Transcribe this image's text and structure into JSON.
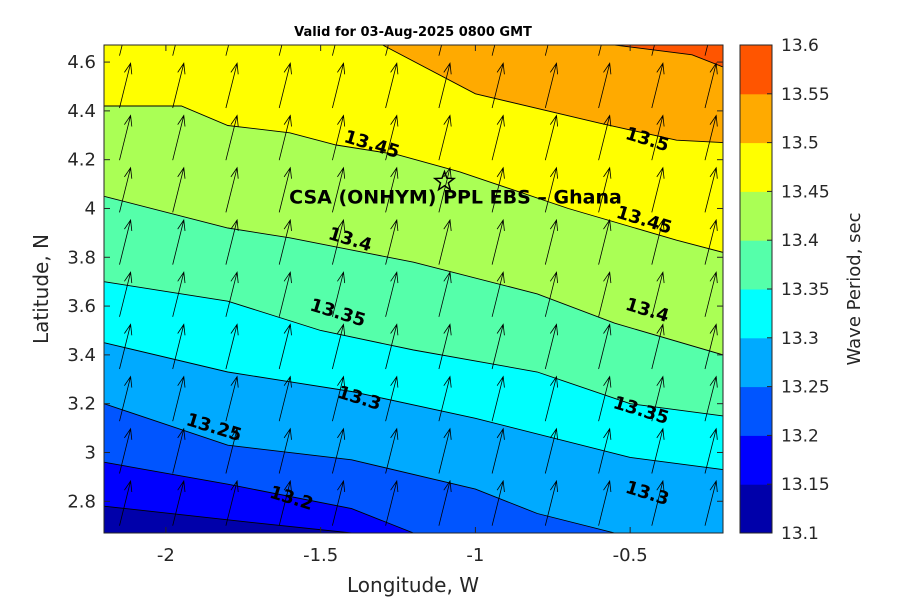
{
  "chart_data": {
    "type": "contour",
    "title": "Valid for 03-Aug-2025 0800 GMT",
    "xlabel": "Longitude, W",
    "ylabel": "Latitude, N",
    "xlim": [
      -2.2,
      -0.2
    ],
    "ylim": [
      2.67,
      4.67
    ],
    "xticks": [
      -2,
      -1.5,
      -1,
      -0.5
    ],
    "xtick_labels": [
      "-2",
      "-1.5",
      "-1",
      "-0.5"
    ],
    "yticks": [
      2.8,
      3.0,
      3.2,
      3.4,
      3.6,
      3.8,
      4.0,
      4.2,
      4.4,
      4.6
    ],
    "ytick_labels": [
      "2.8",
      "3",
      "3.2",
      "3.4",
      "3.6",
      "3.8",
      "4",
      "4.2",
      "4.4",
      "4.6"
    ],
    "colorbar": {
      "label": "Wave Period, sec",
      "levels": [
        13.1,
        13.15,
        13.2,
        13.25,
        13.3,
        13.35,
        13.4,
        13.45,
        13.5,
        13.55,
        13.6
      ],
      "tick_labels": [
        "13.1",
        "13.15",
        "13.2",
        "13.25",
        "13.3",
        "13.35",
        "13.4",
        "13.45",
        "13.5",
        "13.55",
        "13.6"
      ],
      "colors": [
        "#0000aa",
        "#0000ff",
        "#0055ff",
        "#00aaff",
        "#00ffff",
        "#55ffaa",
        "#aaff55",
        "#ffff00",
        "#ffaa00",
        "#ff5500"
      ]
    },
    "contours": [
      {
        "level": 13.15,
        "points": [
          [
            -2.2,
            2.78
          ],
          [
            -1.7,
            2.71
          ],
          [
            -1.4,
            2.67
          ]
        ]
      },
      {
        "level": 13.2,
        "points": [
          [
            -2.2,
            2.96
          ],
          [
            -1.8,
            2.87
          ],
          [
            -1.4,
            2.77
          ],
          [
            -1.2,
            2.67
          ]
        ]
      },
      {
        "level": 13.25,
        "points": [
          [
            -2.2,
            3.2
          ],
          [
            -1.8,
            3.03
          ],
          [
            -1.4,
            2.97
          ],
          [
            -1.0,
            2.85
          ],
          [
            -0.8,
            2.75
          ],
          [
            -0.55,
            2.67
          ]
        ]
      },
      {
        "level": 13.3,
        "points": [
          [
            -2.2,
            3.45
          ],
          [
            -1.8,
            3.33
          ],
          [
            -1.4,
            3.25
          ],
          [
            -1.0,
            3.14
          ],
          [
            -0.5,
            2.98
          ],
          [
            -0.2,
            2.93
          ]
        ]
      },
      {
        "level": 13.35,
        "points": [
          [
            -2.2,
            3.7
          ],
          [
            -1.8,
            3.62
          ],
          [
            -1.5,
            3.5
          ],
          [
            -1.2,
            3.42
          ],
          [
            -0.8,
            3.33
          ],
          [
            -0.5,
            3.2
          ],
          [
            -0.2,
            3.15
          ]
        ]
      },
      {
        "level": 13.4,
        "points": [
          [
            -2.2,
            4.05
          ],
          [
            -1.8,
            3.92
          ],
          [
            -1.6,
            3.88
          ],
          [
            -1.2,
            3.78
          ],
          [
            -0.8,
            3.65
          ],
          [
            -0.55,
            3.53
          ],
          [
            -0.2,
            3.4
          ]
        ]
      },
      {
        "level": 13.45,
        "points": [
          [
            -2.2,
            4.42
          ],
          [
            -1.95,
            4.42
          ],
          [
            -1.8,
            4.34
          ],
          [
            -1.6,
            4.31
          ],
          [
            -1.45,
            4.26
          ],
          [
            -1.25,
            4.22
          ],
          [
            -1.05,
            4.15
          ],
          [
            -0.7,
            4.0
          ],
          [
            -0.35,
            3.87
          ],
          [
            -0.2,
            3.82
          ]
        ]
      },
      {
        "level": 13.5,
        "points": [
          [
            -1.3,
            4.67
          ],
          [
            -1.0,
            4.47
          ],
          [
            -0.6,
            4.35
          ],
          [
            -0.35,
            4.28
          ],
          [
            -0.2,
            4.27
          ]
        ]
      },
      {
        "level": 13.55,
        "points": [
          [
            -0.55,
            4.67
          ],
          [
            -0.3,
            4.63
          ],
          [
            -0.2,
            4.58
          ]
        ]
      }
    ],
    "contour_labels": [
      {
        "text": "13.2",
        "x": -1.6,
        "y": 2.79
      },
      {
        "text": "13.25",
        "x": -1.85,
        "y": 3.08
      },
      {
        "text": "13.3",
        "x": -1.38,
        "y": 3.2
      },
      {
        "text": "13.35",
        "x": -1.45,
        "y": 3.55
      },
      {
        "text": "13.4",
        "x": -1.41,
        "y": 3.85
      },
      {
        "text": "13.45",
        "x": -1.34,
        "y": 4.24
      },
      {
        "text": "13.5",
        "x": -0.45,
        "y": 4.26
      },
      {
        "text": "13.45",
        "x": -0.46,
        "y": 3.93
      },
      {
        "text": "13.4",
        "x": -0.45,
        "y": 3.56
      },
      {
        "text": "13.35",
        "x": -0.47,
        "y": 3.15
      },
      {
        "text": "13.3",
        "x": -0.45,
        "y": 2.81
      }
    ],
    "site": {
      "name": "CSA (ONHYM) PPL EBS  – Ghana",
      "x": -1.1,
      "y": 4.11,
      "marker": "star"
    },
    "vectors": {
      "direction_deg": 14,
      "grid_dx": 0.172,
      "grid_dy": 0.214
    }
  }
}
